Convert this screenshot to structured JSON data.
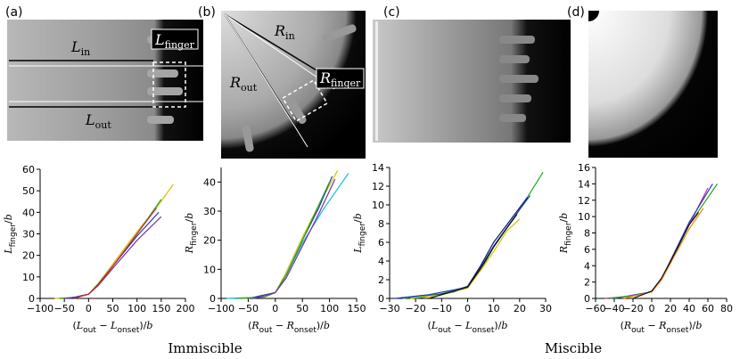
{
  "panels": [
    {
      "label": "(a)",
      "annotations": [
        {
          "main": "L",
          "sub": "in"
        },
        {
          "main": "L",
          "sub": "out"
        },
        {
          "main": "L",
          "sub": "finger"
        }
      ]
    },
    {
      "label": "(b)",
      "annotations": [
        {
          "main": "R",
          "sub": "in"
        },
        {
          "main": "R",
          "sub": "out"
        },
        {
          "main": "R",
          "sub": "finger"
        }
      ]
    },
    {
      "label": "(c)",
      "annotations": []
    },
    {
      "label": "(d)",
      "annotations": []
    }
  ],
  "groups": [
    "Immiscible",
    "Miscible"
  ],
  "chart_data": [
    {
      "type": "line",
      "xlim": [
        -100,
        200
      ],
      "ylim": [
        0,
        60
      ],
      "xticks": [
        {
          "value": -100,
          "label": "−100"
        },
        {
          "value": -50,
          "label": "−50"
        },
        0,
        50,
        100,
        150,
        200
      ],
      "yticks": [
        0,
        10,
        20,
        30,
        40,
        50,
        60
      ],
      "x_label": [
        {
          "t": "(",
          "s": "n"
        },
        {
          "t": "L",
          "s": "i"
        },
        {
          "t": "out",
          "s": "sub"
        },
        {
          "t": " − ",
          "s": "n"
        },
        {
          "t": "L",
          "s": "i"
        },
        {
          "t": "onset",
          "s": "sub"
        },
        {
          "t": ")/",
          "s": "n"
        },
        {
          "t": "b",
          "s": "i"
        }
      ],
      "y_label": [
        {
          "t": "L",
          "s": "i"
        },
        {
          "t": "finger",
          "s": "sub"
        },
        {
          "t": "/",
          "s": "n"
        },
        {
          "t": "b",
          "s": "i"
        }
      ],
      "series": [
        {
          "color": "#d4c400",
          "x": [
            -70,
            -40,
            -20,
            0,
            20,
            50,
            100,
            140,
            175
          ],
          "values": [
            0,
            0.3,
            0.8,
            2,
            7,
            16,
            31,
            42,
            53
          ]
        },
        {
          "color": "#2ca02c",
          "x": [
            -60,
            -30,
            0,
            20,
            50,
            100,
            150
          ],
          "values": [
            0,
            0.5,
            2,
            6.5,
            15,
            30,
            46
          ]
        },
        {
          "color": "#7b2fa0",
          "x": [
            -50,
            -20,
            0,
            20,
            50,
            100,
            150
          ],
          "values": [
            0,
            0.7,
            2,
            6,
            14,
            27,
            38
          ]
        },
        {
          "color": "#1f3fbf",
          "x": [
            -40,
            0,
            20,
            50,
            100,
            145
          ],
          "values": [
            0,
            2,
            6.5,
            15,
            29,
            40
          ]
        },
        {
          "color": "#d62728",
          "x": [
            -30,
            0,
            20,
            50,
            100,
            140
          ],
          "values": [
            0,
            2,
            6,
            15,
            30,
            42
          ]
        }
      ]
    },
    {
      "type": "line",
      "xlim": [
        -100,
        150
      ],
      "ylim": [
        0,
        45
      ],
      "xticks": [
        {
          "value": -100,
          "label": "−100"
        },
        {
          "value": -50,
          "label": "−50"
        },
        0,
        50,
        100,
        150
      ],
      "yticks": [
        0,
        10,
        20,
        30,
        40
      ],
      "x_label": [
        {
          "t": "(",
          "s": "n"
        },
        {
          "t": "R",
          "s": "i"
        },
        {
          "t": "out",
          "s": "sub"
        },
        {
          "t": " − ",
          "s": "n"
        },
        {
          "t": "R",
          "s": "i"
        },
        {
          "t": "onset",
          "s": "sub"
        },
        {
          "t": ")/",
          "s": "n"
        },
        {
          "t": "b",
          "s": "i"
        }
      ],
      "y_label": [
        {
          "t": "R",
          "s": "i"
        },
        {
          "t": "finger",
          "s": "sub"
        },
        {
          "t": "/",
          "s": "n"
        },
        {
          "t": "b",
          "s": "i"
        }
      ],
      "series": [
        {
          "color": "#d4c400",
          "x": [
            -60,
            -20,
            0,
            20,
            50,
            80,
            115
          ],
          "values": [
            0,
            0.5,
            2,
            9,
            21,
            32,
            44
          ]
        },
        {
          "color": "#17becf",
          "x": [
            -90,
            -40,
            0,
            20,
            50,
            90,
            135
          ],
          "values": [
            0,
            0.3,
            2,
            8,
            19,
            31,
            43
          ]
        },
        {
          "color": "#1f3fbf",
          "x": [
            -50,
            0,
            20,
            50,
            80,
            105
          ],
          "values": [
            0,
            2,
            8,
            20,
            31,
            42
          ]
        },
        {
          "color": "#2ca02c",
          "x": [
            -70,
            -20,
            0,
            20,
            50,
            80,
            100
          ],
          "values": [
            0,
            0.5,
            2,
            8,
            20,
            32,
            40
          ]
        },
        {
          "color": "#7b2fa0",
          "x": [
            -40,
            0,
            20,
            50,
            80,
            110
          ],
          "values": [
            0,
            2,
            7,
            18,
            29,
            41
          ]
        }
      ]
    },
    {
      "type": "line",
      "xlim": [
        -30,
        30
      ],
      "ylim": [
        0,
        14
      ],
      "xticks": [
        {
          "value": -30,
          "label": "−30"
        },
        {
          "value": -20,
          "label": "−20"
        },
        {
          "value": -10,
          "label": "−10"
        },
        0,
        10,
        20,
        30
      ],
      "yticks": [
        0,
        2,
        4,
        6,
        8,
        10,
        12,
        14
      ],
      "x_label": [
        {
          "t": "(",
          "s": "n"
        },
        {
          "t": "L",
          "s": "i"
        },
        {
          "t": "out",
          "s": "sub"
        },
        {
          "t": " − ",
          "s": "n"
        },
        {
          "t": "L",
          "s": "i"
        },
        {
          "t": "onset",
          "s": "sub"
        },
        {
          "t": ")/",
          "s": "n"
        },
        {
          "t": "b",
          "s": "i"
        }
      ],
      "y_label": [
        {
          "t": "L",
          "s": "i"
        },
        {
          "t": "finger",
          "s": "sub"
        },
        {
          "t": "/",
          "s": "n"
        },
        {
          "t": "b",
          "s": "i"
        }
      ],
      "series": [
        {
          "color": "#2ca02c",
          "x": [
            -25,
            -10,
            0,
            5,
            10,
            20,
            29
          ],
          "values": [
            0,
            0.5,
            1.3,
            3,
            5.5,
            9.5,
            13.5
          ]
        },
        {
          "color": "#1f3fbf",
          "x": [
            -28,
            -15,
            0,
            5,
            10,
            20,
            24
          ],
          "values": [
            0,
            0.4,
            1.2,
            3.3,
            5.6,
            9.5,
            11
          ]
        },
        {
          "color": "#0b1a6e",
          "x": [
            -20,
            -5,
            0,
            5,
            10,
            20,
            23
          ],
          "values": [
            0,
            0.7,
            1.3,
            3.5,
            6,
            9.7,
            10.8
          ]
        },
        {
          "color": "#d4c400",
          "x": [
            -22,
            -10,
            0,
            5,
            10,
            15,
            20
          ],
          "values": [
            0,
            0.4,
            1.1,
            3,
            5,
            7.2,
            8.5
          ]
        },
        {
          "color": "#111111",
          "x": [
            -15,
            0,
            5,
            10,
            15,
            19
          ],
          "values": [
            0,
            1.2,
            3.2,
            5.5,
            7.5,
            9
          ]
        }
      ]
    },
    {
      "type": "line",
      "xlim": [
        -60,
        80
      ],
      "ylim": [
        0,
        16
      ],
      "xticks": [
        {
          "value": -60,
          "label": "−60"
        },
        {
          "value": -40,
          "label": "−40"
        },
        {
          "value": -20,
          "label": "−20"
        },
        0,
        20,
        40,
        60,
        80
      ],
      "yticks": [
        0,
        2,
        4,
        6,
        8,
        10,
        12,
        14,
        16
      ],
      "x_label": [
        {
          "t": "(",
          "s": "n"
        },
        {
          "t": "R",
          "s": "i"
        },
        {
          "t": "out",
          "s": "sub"
        },
        {
          "t": " − ",
          "s": "n"
        },
        {
          "t": "R",
          "s": "i"
        },
        {
          "t": "onset",
          "s": "sub"
        },
        {
          "t": ")/",
          "s": "n"
        },
        {
          "t": "b",
          "s": "i"
        }
      ],
      "y_label": [
        {
          "t": "R",
          "s": "i"
        },
        {
          "t": "finger",
          "s": "sub"
        },
        {
          "t": "/",
          "s": "n"
        },
        {
          "t": "b",
          "s": "i"
        }
      ],
      "series": [
        {
          "color": "#d6278a",
          "x": [
            -50,
            -20,
            0,
            10,
            20,
            40,
            60
          ],
          "values": [
            0,
            0.3,
            0.8,
            2.3,
            4.5,
            9,
            13.5
          ]
        },
        {
          "color": "#1f3fbf",
          "x": [
            -40,
            0,
            10,
            20,
            40,
            65
          ],
          "values": [
            0,
            0.8,
            2.3,
            4.6,
            9.3,
            14
          ]
        },
        {
          "color": "#2ca02c",
          "x": [
            -45,
            -10,
            0,
            10,
            20,
            40,
            70
          ],
          "values": [
            0,
            0.5,
            0.9,
            2.2,
            4.3,
            9,
            14
          ]
        },
        {
          "color": "#ff7f0e",
          "x": [
            -30,
            0,
            10,
            20,
            40,
            55
          ],
          "values": [
            0,
            0.8,
            2.2,
            4.3,
            8.5,
            11
          ]
        },
        {
          "color": "#111111",
          "x": [
            -20,
            0,
            10,
            20,
            40,
            50
          ],
          "values": [
            0,
            0.9,
            2.4,
            4.5,
            9,
            10.5
          ]
        }
      ]
    }
  ]
}
